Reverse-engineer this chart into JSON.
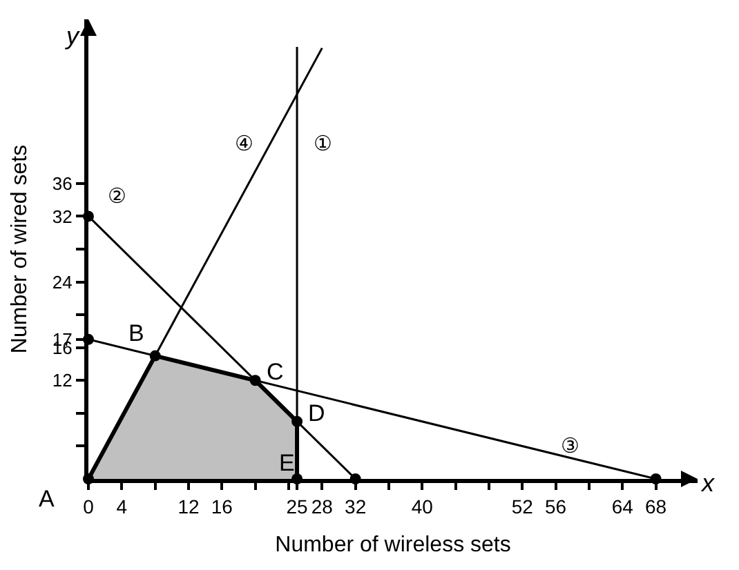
{
  "chart_data": {
    "type": "line",
    "xlabel": "Number of wireless sets",
    "ylabel": "Number of wired sets",
    "xlim": [
      0,
      73
    ],
    "ylim": [
      0,
      56
    ],
    "xticks": [
      0,
      4,
      {
        "value": 8,
        "label": null
      },
      12,
      16,
      {
        "value": 20,
        "label": null
      },
      {
        "value": 24,
        "label": null
      },
      25,
      28,
      32,
      {
        "value": 36,
        "label": null
      },
      40,
      {
        "value": 44,
        "label": null
      },
      {
        "value": 48,
        "label": null
      },
      52,
      56,
      {
        "value": 60,
        "label": null
      },
      64,
      68
    ],
    "yticks": [
      {
        "value": 4,
        "label": null
      },
      {
        "value": 8,
        "label": null
      },
      12,
      16,
      17,
      {
        "value": 20,
        "label": null
      },
      24,
      {
        "value": 28,
        "label": null
      },
      32,
      36
    ],
    "ref_lines": [
      {
        "axis": "x",
        "value": 25,
        "label": "①",
        "color": "#000000"
      }
    ],
    "series": [
      {
        "type": "area",
        "color": "#c0c0c0",
        "x": [
          0,
          8,
          20,
          25,
          25
        ],
        "values": [
          0,
          15,
          12,
          7,
          0
        ]
      },
      {
        "color": "#000000",
        "x": [
          0,
          32
        ],
        "values": [
          32,
          0
        ]
      },
      {
        "color": "#000000",
        "x": [
          0,
          68
        ],
        "values": [
          17,
          0
        ]
      },
      {
        "color": "#000000",
        "x": [
          0,
          28
        ],
        "values": [
          0,
          52.5
        ]
      },
      {
        "type": "scatter",
        "color": "#000000",
        "marker": "circle",
        "x": [
          0,
          8,
          20,
          25,
          25,
          0,
          32,
          0,
          68
        ],
        "values": [
          0,
          15,
          12,
          7,
          0,
          32,
          0,
          17,
          0
        ]
      }
    ],
    "annotations": [
      {
        "text": "A",
        "x": 0,
        "y": 0
      },
      {
        "text": "B",
        "x": 8,
        "y": 15
      },
      {
        "text": "C",
        "x": 20,
        "y": 12
      },
      {
        "text": "D",
        "x": 25,
        "y": 7
      },
      {
        "text": "E",
        "x": 25,
        "y": 0
      },
      "②",
      "③",
      "④",
      "x",
      "y"
    ]
  }
}
